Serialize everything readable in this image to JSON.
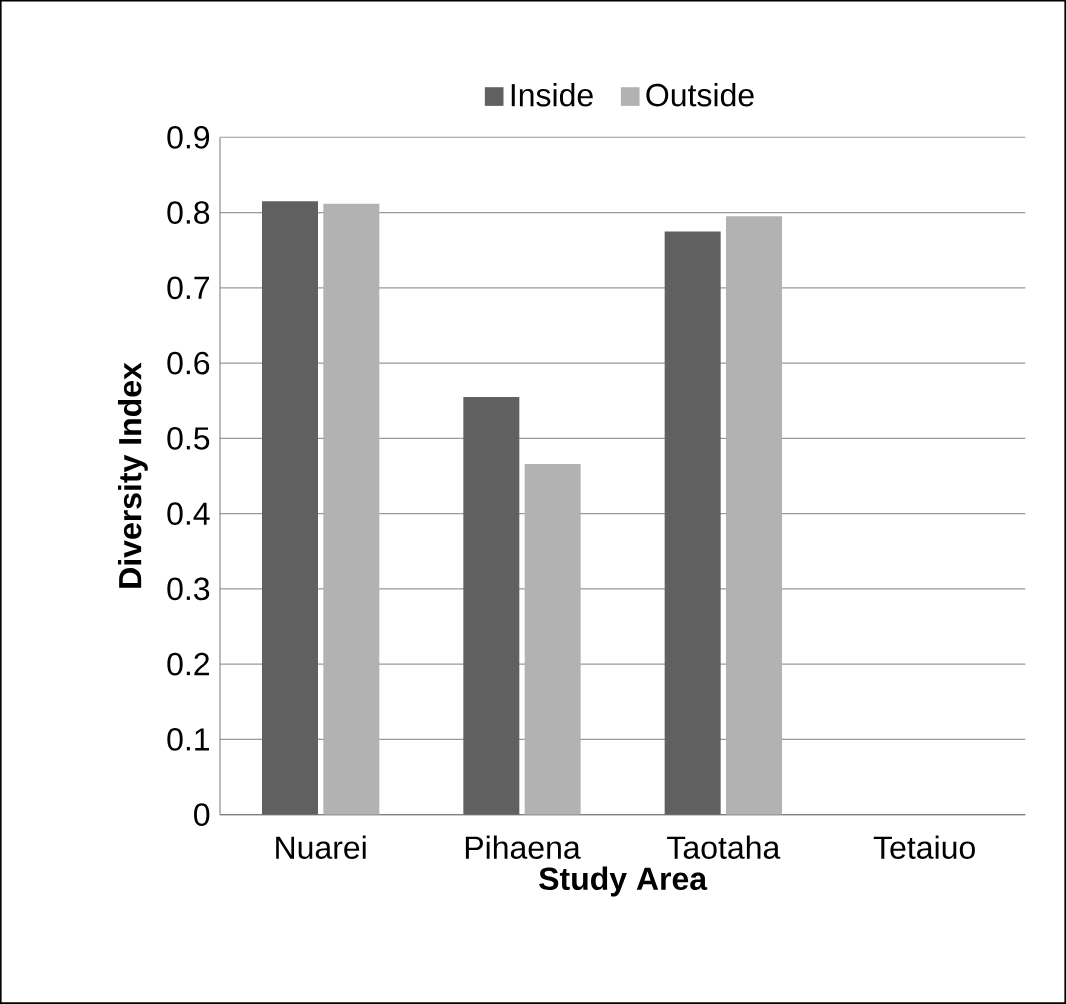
{
  "chart_data": {
    "type": "bar",
    "xlabel": "Study Area",
    "ylabel": "Diversity Index",
    "categories": [
      "Nuarei",
      "Pihaena",
      "Taotaha",
      "Tetaiuo"
    ],
    "series": [
      {
        "name": "Inside",
        "color": "#606060",
        "values": [
          0.815,
          0.555,
          0.775,
          null
        ]
      },
      {
        "name": "Outside",
        "color": "#b2b2b2",
        "values": [
          0.812,
          0.466,
          0.795,
          null
        ]
      }
    ],
    "ylim": [
      0,
      0.9
    ],
    "yticks": [
      0,
      0.1,
      0.2,
      0.3,
      0.4,
      0.5,
      0.6,
      0.7,
      0.8,
      0.9
    ],
    "grid": "y",
    "legend": "top"
  }
}
